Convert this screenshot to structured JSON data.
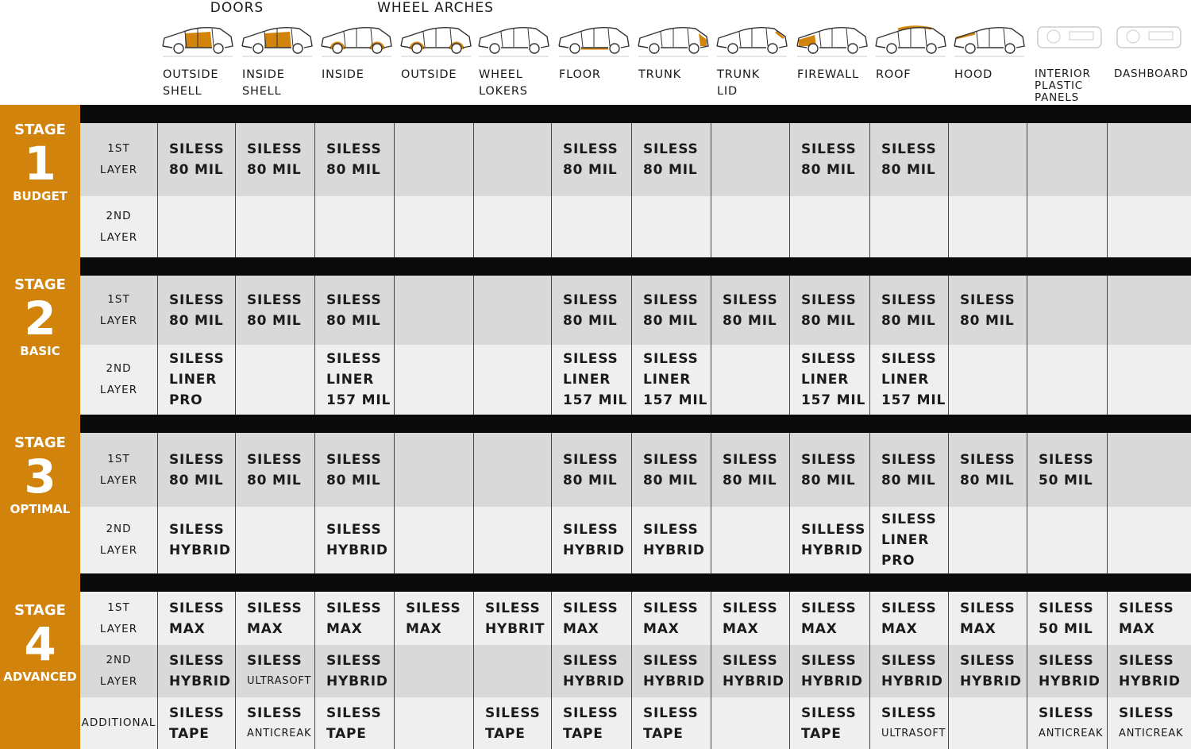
{
  "colors": {
    "accent": "#d1830c",
    "dark_row": "#d9d9d9",
    "light_row": "#efefef"
  },
  "header": {
    "groups": [
      {
        "label": "DOORS"
      },
      {
        "label": "WHEEL ARCHES"
      }
    ],
    "columns": [
      {
        "label": "OUTSIDE\nSHELL",
        "icon": "car-doors-icon"
      },
      {
        "label": "INSIDE\nSHELL",
        "icon": "car-doors-icon"
      },
      {
        "label": "INSIDE",
        "icon": "car-wheel-arches-icon"
      },
      {
        "label": "OUTSIDE",
        "icon": "car-wheel-arches-icon"
      },
      {
        "label": "WHEEL\nLOKERS",
        "icon": "car-outline-icon"
      },
      {
        "label": "FLOOR",
        "icon": "car-floor-icon"
      },
      {
        "label": "TRUNK",
        "icon": "car-trunk-icon"
      },
      {
        "label": "TRUNK\nLID",
        "icon": "car-trunk-lid-icon"
      },
      {
        "label": "FIREWALL",
        "icon": "car-firewall-icon"
      },
      {
        "label": "ROOF",
        "icon": "car-roof-icon"
      },
      {
        "label": "HOOD",
        "icon": "car-hood-icon"
      },
      {
        "label": "INTERIOR\nPLASTIC\nPANELS",
        "icon": "interior-panels-icon"
      },
      {
        "label": "DASHBOARD",
        "icon": "dashboard-icon"
      }
    ]
  },
  "stages": [
    {
      "title": "STAGE",
      "number": "1",
      "name": "BUDGET",
      "rows": [
        {
          "label": "1ST\nLAYER",
          "cells": [
            "SILESS\n80 MIL",
            "SILESS\n80 MIL",
            "SILESS\n80 MIL",
            "",
            "",
            "SILESS\n80 MIL",
            "SILESS\n80 MIL",
            "",
            "SILESS\n80 MIL",
            "SILESS\n80 MIL",
            "",
            "",
            ""
          ]
        },
        {
          "label": "2ND\nLAYER",
          "cells": [
            "",
            "",
            "",
            "",
            "",
            "",
            "",
            "",
            "",
            "",
            "",
            "",
            ""
          ]
        }
      ]
    },
    {
      "title": "STAGE",
      "number": "2",
      "name": "BASIC",
      "rows": [
        {
          "label": "1ST\nLAYER",
          "cells": [
            "SILESS\n80 MIL",
            "SILESS\n80 MIL",
            "SILESS\n80 MIL",
            "",
            "",
            "SILESS\n80 MIL",
            "SILESS\n80 MIL",
            "SILESS\n80 MIL",
            "SILESS\n80 MIL",
            "SILESS\n80 MIL",
            "SILESS\n80 MIL",
            "",
            ""
          ]
        },
        {
          "label": "2ND\nLAYER",
          "cells": [
            "SILESS\nLINER\nPRO",
            "",
            "SILESS\nLINER\n157 MIL",
            "",
            "",
            "SILESS\nLINER\n157 MIL",
            "SILESS\nLINER\n157 MIL",
            "",
            "SILESS\nLINER\n157 MIL",
            "SILESS\nLINER\n157 MIL",
            "",
            "",
            ""
          ]
        }
      ]
    },
    {
      "title": "STAGE",
      "number": "3",
      "name": "OPTIMAL",
      "rows": [
        {
          "label": "1ST\nLAYER",
          "cells": [
            "SILESS\n80 MIL",
            "SILESS\n80 MIL",
            "SILESS\n80 MIL",
            "",
            "",
            "SILESS\n80 MIL",
            "SILESS\n80 MIL",
            "SILESS\n80 MIL",
            "SILESS\n80 MIL",
            "SILESS\n80 MIL",
            "SILESS\n80 MIL",
            "SILESS\n50 MIL",
            ""
          ]
        },
        {
          "label": "2ND\nLAYER",
          "cells": [
            "SILESS\nHYBRID",
            "",
            "SILESS\nHYBRID",
            "",
            "",
            "SILESS\nHYBRID",
            "SILESS\nHYBRID",
            "",
            "SILLESS\nHYBRID",
            "SILESS\nLINER\nPRO",
            "",
            "",
            ""
          ]
        }
      ]
    },
    {
      "title": "STAGE",
      "number": "4",
      "name": "ADVANCED",
      "rows": [
        {
          "label": "1ST\nLAYER",
          "cells": [
            "SILESS\nMAX",
            "SILESS\nMAX",
            "SILESS\nMAX",
            "SILESS\nMAX",
            "SILESS\nHYBRIT",
            "SILESS\nMAX",
            "SILESS\nMAX",
            "SILESS\nMAX",
            "SILESS\nMAX",
            "SILESS\nMAX",
            "SILESS\nMAX",
            "SILESS\n50 MIL",
            "SILESS\nMAX"
          ]
        },
        {
          "label": "2ND\nLAYER",
          "cells": [
            "SILESS\nHYBRID",
            "SILESS\nULTRASOFT",
            "SILESS\nHYBRID",
            "",
            "",
            "SILESS\nHYBRID",
            "SILESS\nHYBRID",
            "SILESS\nHYBRID",
            "SILESS\nHYBRID",
            "SILESS\nHYBRID",
            "SILESS\nHYBRID",
            "SILESS\nHYBRID",
            "SILESS\nHYBRID"
          ]
        },
        {
          "label": "ADDITIONAL",
          "cells": [
            "SILESS\nTAPE",
            "SILESS\nANTICREAK",
            "SILESS\nTAPE",
            "",
            "SILESS\nTAPE",
            "SILESS\nTAPE",
            "SILESS\nTAPE",
            "",
            "SILESS\nTAPE",
            "SILESS\nULTRASOFT",
            "",
            "SILESS\nANTICREAK",
            "SILESS\nANTICREAK"
          ]
        }
      ]
    }
  ]
}
